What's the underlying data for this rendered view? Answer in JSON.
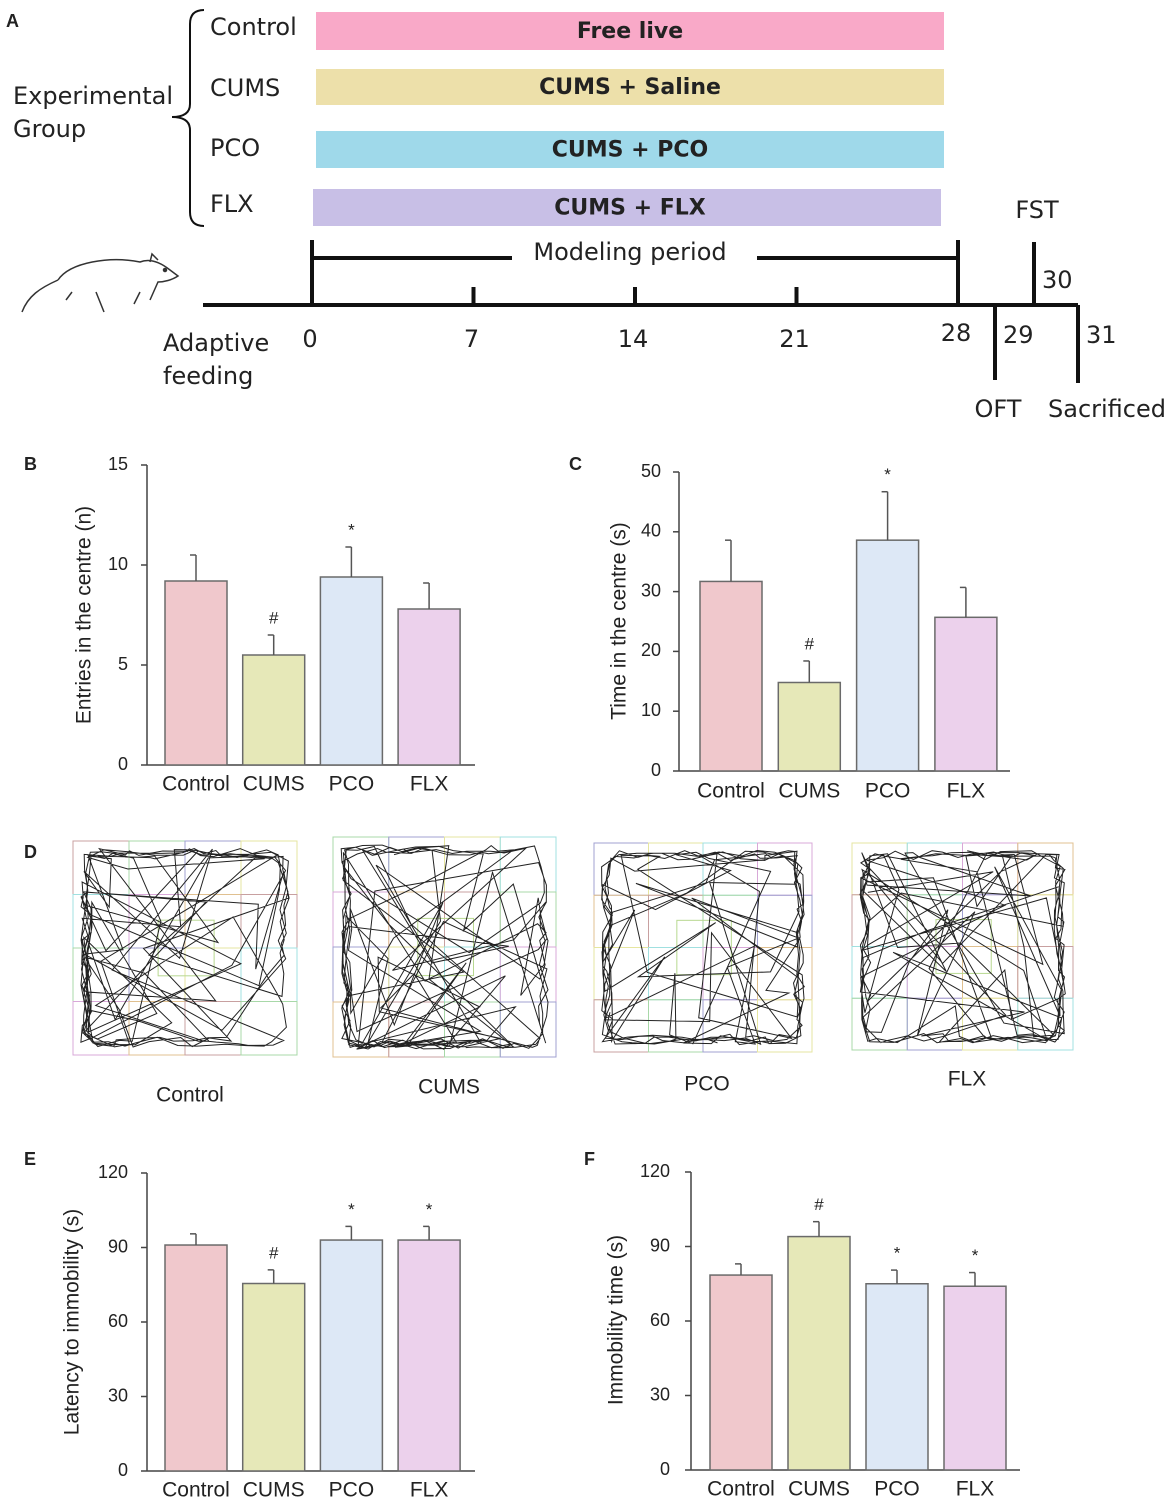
{
  "timeline": {
    "panel": "A",
    "group_label": "Experimental Group",
    "groups": [
      {
        "name": "Control",
        "treatment": "Free live",
        "color": "#f9a9c8"
      },
      {
        "name": "CUMS",
        "treatment": "CUMS + Saline",
        "color": "#ede0aa"
      },
      {
        "name": "PCO",
        "treatment": "CUMS + PCO",
        "color": "#9fd9ea"
      },
      {
        "name": "FLX",
        "treatment": "CUMS + FLX",
        "color": "#c8bfe6"
      }
    ],
    "period_label": "Modeling period",
    "start_label": "Adaptive feeding",
    "days": [
      0,
      7,
      14,
      21,
      28
    ],
    "events": [
      {
        "day": 29,
        "label": "OFT"
      },
      {
        "day": 30,
        "label": "FST"
      },
      {
        "day": 31,
        "label": "Sacrificed"
      }
    ]
  },
  "open_field": {
    "panel": "D",
    "labels": [
      "Control",
      "CUMS",
      "PCO",
      "FLX"
    ]
  },
  "chart_data": [
    {
      "type": "bar",
      "panel": "B",
      "y_label": "Entries in the centre (n)",
      "categories": [
        "Control",
        "CUMS",
        "PCO",
        "FLX"
      ],
      "values": [
        9.2,
        5.5,
        9.4,
        7.8
      ],
      "errors": [
        1.3,
        1.0,
        1.5,
        1.3
      ],
      "marks": [
        null,
        "#",
        "*",
        null
      ],
      "colors": [
        "#f0c8cc",
        "#e6e8b8",
        "#dde8f6",
        "#ecd1ec"
      ],
      "ylim": [
        0,
        15
      ],
      "yticks": [
        0,
        5,
        10,
        15
      ]
    },
    {
      "type": "bar",
      "panel": "C",
      "y_label": "Time in the centre (s)",
      "categories": [
        "Control",
        "CUMS",
        "PCO",
        "FLX"
      ],
      "values": [
        31.7,
        14.8,
        38.6,
        25.7
      ],
      "errors": [
        6.9,
        3.6,
        8.1,
        5.0
      ],
      "marks": [
        null,
        "#",
        "*",
        null
      ],
      "colors": [
        "#f0c8cc",
        "#e6e8b8",
        "#dde8f6",
        "#ecd1ec"
      ],
      "ylim": [
        0,
        50
      ],
      "yticks": [
        0,
        10,
        20,
        30,
        40,
        50
      ]
    },
    {
      "type": "bar",
      "panel": "E",
      "y_label": "Latency to immobility (s)",
      "categories": [
        "Control",
        "CUMS",
        "PCO",
        "FLX"
      ],
      "values": [
        91,
        75.5,
        93,
        93
      ],
      "errors": [
        4.5,
        5.5,
        5.5,
        5.5
      ],
      "marks": [
        null,
        "#",
        "*",
        "*"
      ],
      "colors": [
        "#f0c8cc",
        "#e6e8b8",
        "#dde8f6",
        "#ecd1ec"
      ],
      "ylim": [
        0,
        120
      ],
      "yticks": [
        0,
        30,
        60,
        90,
        120
      ]
    },
    {
      "type": "bar",
      "panel": "F",
      "y_label": "Immobility time (s)",
      "categories": [
        "Control",
        "CUMS",
        "PCO",
        "FLX"
      ],
      "values": [
        78.5,
        94,
        75,
        74
      ],
      "errors": [
        4.5,
        6,
        5.5,
        5.5
      ],
      "marks": [
        null,
        "#",
        "*",
        "*"
      ],
      "colors": [
        "#f0c8cc",
        "#e6e8b8",
        "#dde8f6",
        "#ecd1ec"
      ],
      "ylim": [
        0,
        120
      ],
      "yticks": [
        0,
        30,
        60,
        90,
        120
      ]
    }
  ]
}
